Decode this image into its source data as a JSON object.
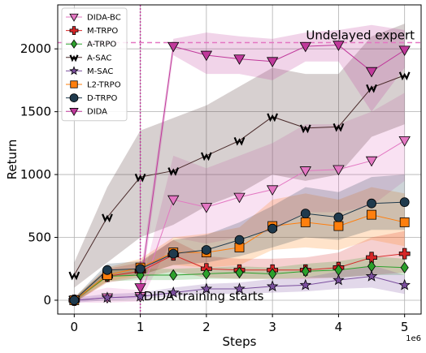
{
  "chart_data": {
    "type": "line",
    "xlabel": "Steps",
    "ylabel": "Return",
    "x_scale_label": "1e6",
    "xlim": [
      -0.25,
      5.25
    ],
    "ylim": [
      -110,
      2350
    ],
    "xticks": [
      0,
      1,
      2,
      3,
      4,
      5
    ],
    "yticks": [
      0,
      500,
      1000,
      1500,
      2000
    ],
    "xtick_labels": [
      "0",
      "1",
      "2",
      "3",
      "4",
      "5"
    ],
    "ytick_labels": [
      "0",
      "500",
      "1000",
      "1500",
      "2000"
    ],
    "grid": true,
    "legend_position": "top-left",
    "x": [
      0,
      0.5,
      1,
      1.5,
      2,
      2.5,
      3,
      3.5,
      4,
      4.5,
      5
    ],
    "reference_lines": [
      {
        "orientation": "horizontal",
        "value": 2050,
        "label": "Undelayed expert",
        "color": "#e377c2"
      },
      {
        "orientation": "vertical",
        "value": 1,
        "label": "DIDA training starts",
        "color": "#c0399b"
      }
    ],
    "series": [
      {
        "name": "DIDA-BC",
        "marker": "triangle-down",
        "color": "#e377c2",
        "values": [
          0,
          20,
          30,
          800,
          740,
          820,
          880,
          1030,
          1040,
          1110,
          1270
        ],
        "lower": [
          -20,
          -20,
          -10,
          500,
          450,
          500,
          550,
          700,
          700,
          750,
          950
        ],
        "upper": [
          40,
          100,
          80,
          1150,
          1050,
          1150,
          1250,
          1400,
          1400,
          1500,
          1650
        ]
      },
      {
        "name": "M-TRPO",
        "marker": "plus",
        "color": "#d62728",
        "values": [
          0,
          190,
          230,
          360,
          250,
          240,
          240,
          240,
          260,
          340,
          370
        ],
        "lower": [
          -20,
          140,
          180,
          230,
          180,
          170,
          170,
          170,
          180,
          200,
          220
        ],
        "upper": [
          20,
          250,
          300,
          480,
          350,
          330,
          330,
          340,
          380,
          500,
          550
        ]
      },
      {
        "name": "A-TRPO",
        "marker": "diamond",
        "color": "#2ca02c",
        "values": [
          0,
          190,
          200,
          200,
          210,
          220,
          210,
          230,
          240,
          270,
          260
        ],
        "lower": [
          -20,
          150,
          160,
          160,
          170,
          170,
          170,
          180,
          180,
          200,
          200
        ],
        "upper": [
          20,
          240,
          250,
          250,
          260,
          270,
          260,
          290,
          310,
          350,
          330
        ]
      },
      {
        "name": "A-SAC",
        "marker": "w-glyph",
        "color": "#4a2a2a",
        "values": [
          200,
          660,
          980,
          1030,
          1150,
          1270,
          1460,
          1370,
          1380,
          1690,
          1790
        ],
        "lower": [
          100,
          300,
          500,
          600,
          750,
          850,
          1000,
          950,
          1000,
          1300,
          1400
        ],
        "upper": [
          300,
          900,
          1350,
          1450,
          1550,
          1700,
          1850,
          1800,
          1800,
          2100,
          2200
        ]
      },
      {
        "name": "M-SAC",
        "marker": "star",
        "color": "#7b4f9e",
        "values": [
          0,
          20,
          30,
          60,
          90,
          90,
          110,
          120,
          160,
          190,
          120
        ],
        "lower": [
          -20,
          0,
          10,
          30,
          50,
          50,
          60,
          70,
          90,
          100,
          50
        ],
        "upper": [
          20,
          50,
          60,
          100,
          130,
          140,
          170,
          180,
          230,
          280,
          200
        ]
      },
      {
        "name": "L2-TRPO",
        "marker": "square",
        "color": "#ff7f0e",
        "values": [
          0,
          200,
          260,
          380,
          380,
          420,
          590,
          620,
          590,
          680,
          620
        ],
        "lower": [
          -20,
          150,
          200,
          280,
          260,
          280,
          400,
          420,
          400,
          480,
          430
        ],
        "upper": [
          20,
          260,
          330,
          500,
          530,
          580,
          800,
          850,
          800,
          900,
          850
        ]
      },
      {
        "name": "D-TRPO",
        "marker": "circle",
        "color": "#1f3a4d",
        "values": [
          0,
          240,
          250,
          370,
          400,
          480,
          570,
          690,
          660,
          770,
          780
        ],
        "lower": [
          -20,
          190,
          200,
          280,
          300,
          350,
          420,
          500,
          480,
          560,
          560
        ],
        "upper": [
          20,
          290,
          310,
          480,
          520,
          620,
          750,
          900,
          860,
          980,
          1000
        ]
      },
      {
        "name": "DIDA",
        "marker": "triangle-down",
        "color": "#c0399b",
        "x": [
          1,
          1.5,
          2,
          2.5,
          3,
          3.5,
          4,
          4.5,
          5
        ],
        "values": [
          100,
          2020,
          1950,
          1920,
          1900,
          2020,
          2030,
          1820,
          1990
        ],
        "lower": [
          0,
          1950,
          1800,
          1800,
          1750,
          1900,
          1900,
          1500,
          1850
        ],
        "upper": [
          200,
          2080,
          2130,
          2100,
          2080,
          2130,
          2150,
          2190,
          2150
        ]
      }
    ]
  }
}
